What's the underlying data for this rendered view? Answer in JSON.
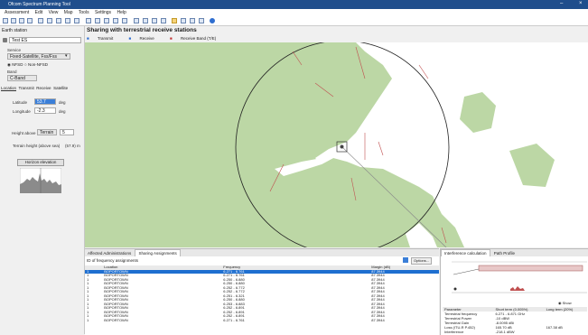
{
  "window": {
    "title": "Ofcom Spectrum Planning Tool"
  },
  "menu": [
    "Assessment",
    "Edit",
    "View",
    "Map",
    "Tools",
    "Settings",
    "Help"
  ],
  "left": {
    "header": "Earth station",
    "station_name": "Test ES",
    "service_label": "Service",
    "service_value": "Fixed-Satellite, Fss/Fss",
    "radio_nfsd": "NFSD",
    "radio_non_nfsd": "Non-NFSD",
    "band_label": "Band",
    "band_value": "C-Band",
    "tabs": [
      "Location",
      "Transmit",
      "Receive",
      "Satellite"
    ],
    "latitude_label": "Latitude",
    "latitude_value": "53.7",
    "latitude_unit": "deg",
    "longitude_label": "Longitude",
    "longitude_value": "-2.3",
    "longitude_unit": "deg",
    "height_label": "Height above",
    "height_value": "Terrain",
    "height_num": "5",
    "terrain_label": "Terrain height (above sea)",
    "terrain_value": "(57.9) m",
    "elevation_button": "Horizon elevation"
  },
  "main": {
    "title": "Sharing with terrestrial receive stations",
    "map_tabs": [
      "Transmit",
      "Receive",
      "Receive Band (T/E)"
    ]
  },
  "bottom": {
    "tabs": [
      "Affected Administrations",
      "Sharing Assignments"
    ],
    "header": "ID of frequency assignments",
    "options_button": "Options...",
    "columns": [
      "Location",
      "Frequency",
      "Margin (dB)"
    ],
    "rows": [
      [
        "1",
        "BOPORTOWN",
        "6.271 - 6.761",
        "87.3944"
      ],
      [
        "1",
        "BOPORTOWN",
        "6.271 - 6.761",
        "87.3944"
      ],
      [
        "1",
        "BOPORTOWN",
        "6.250 - 6.880",
        "87.3944"
      ],
      [
        "1",
        "BOPORTOWN",
        "6.250 - 6.880",
        "87.3944"
      ],
      [
        "1",
        "BOPORTOWN",
        "6.252 - 6.772",
        "87.3944"
      ],
      [
        "1",
        "BOPORTOWN",
        "6.252 - 6.772",
        "87.3944"
      ],
      [
        "1",
        "BOPORTOWN",
        "6.251 - 6.321",
        "87.3944"
      ],
      [
        "1",
        "BOPORTOWN",
        "6.250 - 6.880",
        "87.3944"
      ],
      [
        "1",
        "BOPORTOWN",
        "6.253 - 6.883",
        "87.3944"
      ],
      [
        "1",
        "BOPORTOWN",
        "6.252 - 6.891",
        "87.3944"
      ],
      [
        "1",
        "BOPORTOWN",
        "6.252 - 6.891",
        "87.3944"
      ],
      [
        "1",
        "BOPORTOWN",
        "6.252 - 6.891",
        "87.3944"
      ],
      [
        "1",
        "BOPORTOWN",
        "6.271 - 6.761",
        "87.3944"
      ]
    ]
  },
  "right": {
    "tabs": [
      "Interference calculation",
      "Path Profile"
    ],
    "radio_label": "Show",
    "columns": [
      "Parameter",
      "Short term (0.005%)",
      "Long term (20%)"
    ],
    "rows": [
      [
        "Terrestrial frequency",
        "6.271 - 6.871 GHz",
        ""
      ],
      [
        "Terrestrial Power",
        "-10 dBW",
        ""
      ],
      [
        "Terrestrial Gain",
        "-8.0095 dBi",
        ""
      ],
      [
        "Loss (ITU-R P.452)",
        "165.70 dB",
        "167.38 dB"
      ],
      [
        "Interference",
        "-218.1 dBW",
        ""
      ]
    ]
  }
}
